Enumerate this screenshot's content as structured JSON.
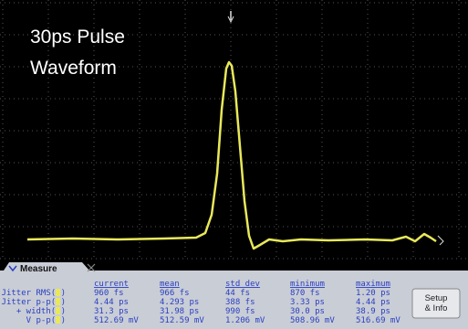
{
  "screen": {
    "title_lines": [
      "30ps Pulse",
      "Waveform"
    ]
  },
  "measure": {
    "tab": "Measure",
    "columns": [
      "current",
      "mean",
      "std dev",
      "minimum",
      "maximum"
    ],
    "rows": [
      {
        "label": "Jitter RMS(  )",
        "values": [
          "960 fs",
          "966 fs",
          "44 fs",
          "870 fs",
          "1.20 ps"
        ]
      },
      {
        "label": "Jitter p-p(  )",
        "values": [
          "4.44 ps",
          "4.293 ps",
          "388 fs",
          "3.33 ps",
          "4.44 ps"
        ]
      },
      {
        "label": "+ width(  )",
        "values": [
          "31.3 ps",
          "31.98 ps",
          "990 fs",
          "30.0 ps",
          "38.9 ps"
        ]
      },
      {
        "label": "V p-p(  )",
        "values": [
          "512.69 mV",
          "512.59 mV",
          "1.206 mV",
          "508.96 mV",
          "516.69 mV"
        ]
      }
    ],
    "button": [
      "Setup",
      "& Info"
    ]
  }
}
